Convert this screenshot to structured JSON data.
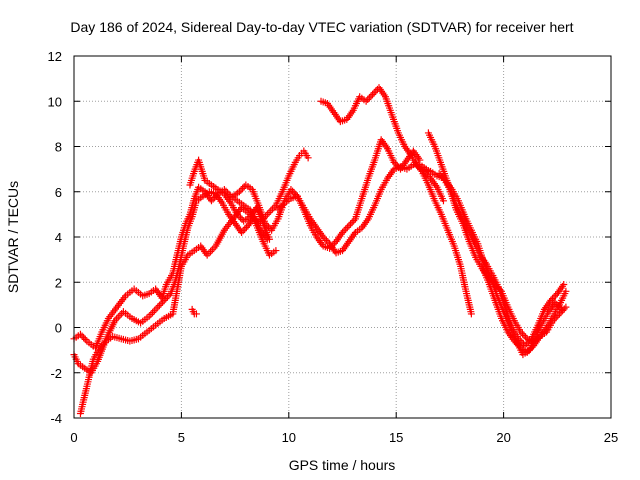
{
  "chart_data": {
    "type": "scatter",
    "title": "Day 186 of 2024, Sidereal Day-to-day VTEC variation (SDTVAR) for receiver hert",
    "xlabel": "GPS time / hours",
    "ylabel": "SDTVAR / TECUs",
    "xlim": [
      0,
      25
    ],
    "ylim": [
      -4,
      12
    ],
    "xticks": [
      "0",
      "5",
      "10",
      "15",
      "20",
      "25"
    ],
    "yticks": [
      "-4",
      "-2",
      "0",
      "2",
      "4",
      "6",
      "8",
      "10",
      "12"
    ],
    "grid": true,
    "marker": "plus",
    "color": "#ff0000",
    "series": [
      {
        "x": [
          0.0,
          0.3,
          0.6,
          1.0,
          1.3,
          1.6,
          2.0,
          2.4,
          2.8,
          3.2,
          3.5,
          3.8,
          4.1,
          4.3,
          4.6,
          4.8,
          5.0,
          5.2,
          5.4,
          5.6,
          5.8,
          6.1,
          6.4,
          6.7,
          7.0,
          7.3,
          7.6,
          7.9,
          8.2,
          8.5,
          8.8,
          9.1,
          9.4
        ],
        "y": [
          -0.5,
          -0.3,
          -0.6,
          -0.9,
          -0.2,
          0.4,
          0.9,
          1.4,
          1.7,
          1.4,
          1.5,
          1.7,
          1.3,
          1.9,
          2.4,
          3.2,
          4.0,
          4.6,
          5.0,
          5.7,
          6.2,
          6.0,
          5.6,
          5.9,
          6.1,
          5.8,
          5.6,
          5.4,
          5.2,
          4.5,
          3.8,
          3.2,
          3.4
        ]
      },
      {
        "x": [
          0.0,
          0.2,
          0.5,
          0.8,
          1.1,
          1.5,
          1.9,
          2.3,
          2.7,
          3.1,
          3.5,
          3.9,
          4.2,
          4.5,
          4.7,
          4.9,
          5.1,
          5.3,
          5.5,
          5.7,
          6.0,
          6.3,
          6.6,
          6.9,
          7.2,
          7.5,
          7.8,
          8.1,
          8.4,
          8.7,
          9.0
        ],
        "y": [
          -1.2,
          -1.6,
          -1.8,
          -2.0,
          -1.5,
          -0.5,
          0.3,
          0.7,
          0.4,
          0.2,
          0.5,
          0.9,
          1.2,
          1.5,
          2.0,
          2.7,
          3.6,
          4.4,
          4.9,
          5.6,
          5.8,
          6.0,
          5.9,
          5.5,
          5.0,
          4.6,
          4.2,
          4.5,
          4.9,
          4.3,
          3.9
        ]
      },
      {
        "x": [
          0.3,
          0.5,
          0.7,
          0.9,
          1.2,
          1.5,
          1.8,
          2.2,
          2.6,
          3.0,
          3.4,
          3.8,
          4.2,
          4.6,
          5.0,
          5.3,
          5.6,
          5.9,
          6.2,
          6.6,
          7.0,
          7.4,
          7.8,
          8.2,
          8.6,
          9.0,
          9.4,
          9.7,
          10.0,
          10.3,
          10.5,
          10.7,
          10.9
        ],
        "y": [
          -3.8,
          -3.0,
          -2.2,
          -1.4,
          -0.9,
          -0.6,
          -0.4,
          -0.5,
          -0.6,
          -0.5,
          -0.2,
          0.1,
          0.4,
          0.6,
          2.7,
          3.2,
          3.4,
          3.6,
          3.2,
          3.6,
          4.3,
          4.8,
          5.3,
          5.0,
          4.6,
          5.0,
          5.4,
          6.0,
          6.7,
          7.3,
          7.6,
          7.8,
          7.5
        ]
      },
      {
        "x": [
          7.4,
          7.7,
          8.0,
          8.3,
          8.6,
          8.9,
          9.2,
          9.5,
          9.8,
          10.1,
          10.4,
          10.7,
          11.0,
          11.3,
          11.6,
          11.9,
          12.2,
          12.5,
          12.8,
          13.1,
          13.4,
          13.7,
          14.0,
          14.3,
          14.6,
          14.9,
          15.2,
          15.5,
          15.8,
          16.1
        ],
        "y": [
          5.8,
          6.0,
          6.3,
          6.1,
          5.4,
          4.6,
          4.3,
          4.8,
          5.6,
          6.1,
          5.8,
          5.2,
          4.5,
          4.0,
          3.6,
          3.5,
          3.8,
          4.2,
          4.5,
          4.8,
          5.7,
          6.6,
          7.4,
          8.3,
          7.9,
          7.3,
          7.0,
          7.4,
          7.8,
          7.4
        ]
      },
      {
        "x": [
          9.5,
          9.8,
          10.1,
          10.4,
          10.7,
          11.0,
          11.3,
          11.6,
          11.9,
          12.2,
          12.5,
          12.8,
          13.1,
          13.4,
          13.7,
          14.0,
          14.3,
          14.6,
          14.9,
          15.2,
          15.5,
          15.8,
          16.1,
          16.4
        ],
        "y": [
          5.2,
          5.5,
          5.7,
          5.8,
          5.3,
          4.8,
          4.4,
          4.0,
          3.7,
          3.3,
          3.4,
          3.8,
          4.2,
          4.4,
          4.8,
          5.4,
          6.1,
          6.6,
          7.0,
          7.1,
          7.0,
          7.2,
          7.2,
          7.0
        ]
      },
      {
        "x": [
          11.5,
          11.8,
          12.1,
          12.4,
          12.7,
          13.0,
          13.3,
          13.6,
          13.9,
          14.2,
          14.5,
          14.8,
          15.1,
          15.4,
          15.7,
          16.0,
          16.3,
          16.6,
          16.9,
          17.2
        ],
        "y": [
          10.0,
          9.9,
          9.5,
          9.1,
          9.2,
          9.6,
          10.2,
          10.0,
          10.3,
          10.6,
          10.2,
          9.4,
          8.6,
          8.0,
          7.6,
          7.1,
          6.9,
          6.6,
          6.2,
          5.6
        ]
      },
      {
        "x": [
          16.3,
          16.6,
          16.9,
          17.2,
          17.5,
          17.8,
          18.1,
          18.4,
          18.7,
          19.0,
          19.3,
          19.6,
          19.9,
          20.2,
          20.5,
          20.8,
          21.1,
          21.4,
          21.7,
          22.0,
          22.3,
          22.6,
          22.9
        ],
        "y": [
          7.0,
          6.9,
          6.7,
          6.6,
          6.1,
          5.2,
          4.6,
          3.8,
          3.1,
          2.6,
          2.2,
          1.9,
          1.6,
          0.9,
          0.3,
          -0.2,
          -0.5,
          -0.6,
          -0.4,
          -0.2,
          0.3,
          0.6,
          0.9
        ]
      },
      {
        "x": [
          16.5,
          16.8,
          17.1,
          17.4,
          17.7,
          18.0,
          18.3,
          18.6,
          18.9,
          19.2,
          19.5,
          19.8,
          20.1,
          20.4,
          20.7,
          21.0,
          21.3,
          21.6,
          21.9,
          22.2,
          22.5,
          22.8
        ],
        "y": [
          8.6,
          8.0,
          7.2,
          6.4,
          5.6,
          5.0,
          4.4,
          3.8,
          3.2,
          2.8,
          2.3,
          1.7,
          0.8,
          0.0,
          -0.5,
          -0.8,
          -0.5,
          0.1,
          0.8,
          1.2,
          1.5,
          1.9
        ]
      },
      {
        "x": [
          15.9,
          16.2,
          16.5,
          16.8,
          17.1,
          17.4,
          17.7,
          18.0,
          18.2,
          18.4,
          18.5
        ],
        "y": [
          7.3,
          6.9,
          6.3,
          5.6,
          5.0,
          4.3,
          3.6,
          2.7,
          1.8,
          1.0,
          0.6
        ]
      },
      {
        "x": [
          19.0,
          19.3,
          19.6,
          19.9,
          20.2,
          20.5,
          20.8,
          21.1,
          21.4,
          21.7,
          22.0,
          22.3,
          22.6,
          22.9
        ],
        "y": [
          2.7,
          2.0,
          1.2,
          0.4,
          -0.2,
          -0.6,
          -0.9,
          -1.1,
          -0.8,
          -0.4,
          0.0,
          0.5,
          1.0,
          1.6
        ]
      },
      {
        "x": [
          17.0,
          17.3,
          17.6,
          17.9,
          18.2,
          18.5,
          18.8,
          19.1,
          19.4,
          19.7,
          20.0,
          20.3,
          20.6,
          20.9,
          21.2,
          21.5,
          21.8,
          22.1,
          22.4,
          22.7
        ],
        "y": [
          6.8,
          6.5,
          6.1,
          5.6,
          4.9,
          4.3,
          3.7,
          2.8,
          2.2,
          1.4,
          0.7,
          0.0,
          -0.6,
          -1.2,
          -1.0,
          -0.4,
          0.2,
          0.7,
          1.1,
          0.8
        ]
      },
      {
        "x": [
          5.4,
          5.6,
          5.8,
          6.1,
          6.4,
          6.7,
          7.0,
          7.3,
          7.6,
          7.9,
          8.2,
          8.5,
          8.8,
          9.1
        ],
        "y": [
          6.3,
          6.9,
          7.4,
          6.5,
          6.3,
          6.1,
          5.9,
          5.5,
          5.0,
          4.7,
          4.9,
          5.3,
          4.6,
          3.9
        ]
      },
      {
        "x": [
          5.5,
          5.6,
          5.7
        ],
        "y": [
          0.8,
          0.6,
          0.6
        ]
      }
    ]
  }
}
